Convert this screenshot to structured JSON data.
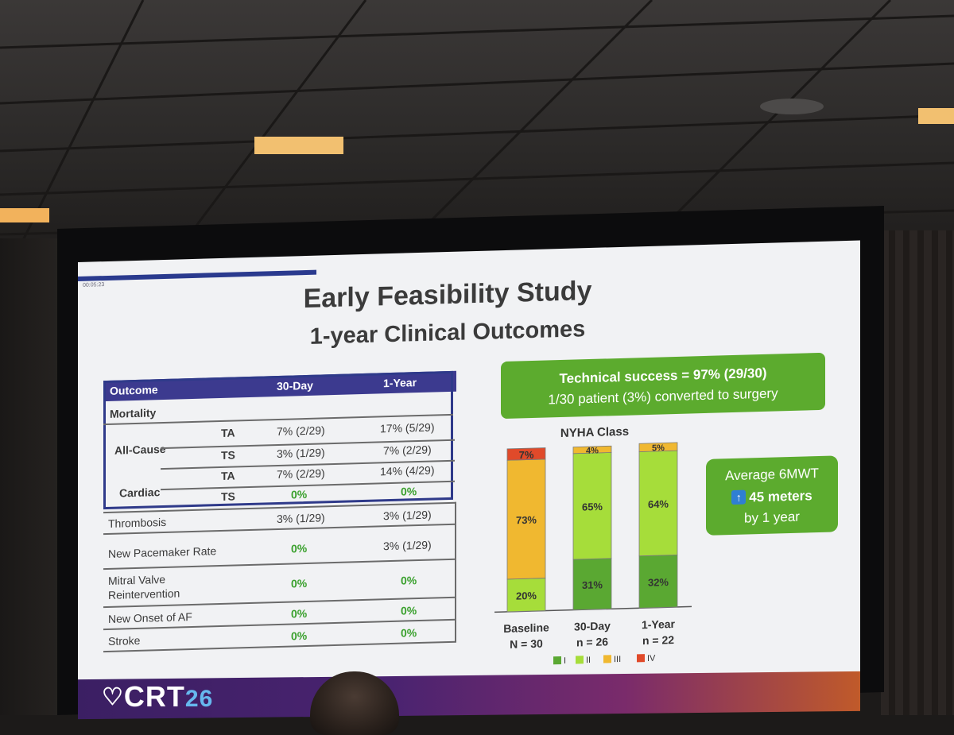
{
  "slide": {
    "timer": "00:05:23",
    "title_line1": "Early Feasibility Study",
    "title_line2": "1-year Clinical Outcomes"
  },
  "table": {
    "headers": [
      "Outcome",
      "30-Day",
      "1-Year"
    ],
    "mortality_label": "Mortality",
    "all_cause_label": "All-Cause",
    "cardiac_label": "Cardiac",
    "rows": [
      {
        "sub": "TA",
        "d30": "7% (2/29)",
        "y1": "17% (5/29)"
      },
      {
        "sub": "TS",
        "d30": "3% (1/29)",
        "y1": "7% (2/29)"
      },
      {
        "sub": "TA",
        "d30": "7% (2/29)",
        "y1": "14% (4/29)"
      },
      {
        "sub": "TS",
        "d30": "0%",
        "y1": "0%"
      }
    ],
    "other_rows": [
      {
        "label": "Thrombosis",
        "d30": "3% (1/29)",
        "y1": "3% (1/29)"
      },
      {
        "label": "New Pacemaker Rate",
        "d30": "0%",
        "y1": "3% (1/29)"
      },
      {
        "label": "Mitral Valve",
        "label2": "Reintervention",
        "d30": "0%",
        "y1": "0%"
      },
      {
        "label": "New Onset of AF",
        "d30": "0%",
        "y1": "0%"
      },
      {
        "label": "Stroke",
        "d30": "0%",
        "y1": "0%"
      }
    ]
  },
  "technical": {
    "line1": "Technical success = 97% (29/30)",
    "line2": "1/30 patient (3%) converted to surgery"
  },
  "mwt": {
    "line1": "Average 6MWT",
    "line2": "45 meters",
    "line3": "by 1 year",
    "arrow_icon": "arrow-up-icon"
  },
  "colors": {
    "class1": "#5aa832",
    "class2": "#a6dd3a",
    "class3": "#f0b830",
    "class4": "#e04a2a",
    "accent_green": "#5cab2e",
    "header_blue": "#3c3a8f"
  },
  "chart_data": {
    "type": "bar",
    "stacked": true,
    "title": "NYHA Class",
    "categories": [
      "Baseline",
      "30-Day",
      "1-Year"
    ],
    "category_n": [
      "N = 30",
      "n = 26",
      "n = 22"
    ],
    "series": [
      {
        "name": "I",
        "values": [
          0,
          31,
          32
        ]
      },
      {
        "name": "II",
        "values": [
          20,
          65,
          64
        ]
      },
      {
        "name": "III",
        "values": [
          73,
          4,
          5
        ]
      },
      {
        "name": "IV",
        "values": [
          7,
          0,
          0
        ]
      }
    ],
    "labels": [
      [
        "",
        "20%",
        "73%",
        "7%"
      ],
      [
        "31%",
        "65%",
        "4%",
        ""
      ],
      [
        "32%",
        "64%",
        "5%",
        ""
      ]
    ],
    "legend": [
      "I",
      "II",
      "III",
      "IV"
    ],
    "ylim": [
      0,
      100
    ]
  },
  "logo": {
    "text": "CRT",
    "year": "26"
  }
}
